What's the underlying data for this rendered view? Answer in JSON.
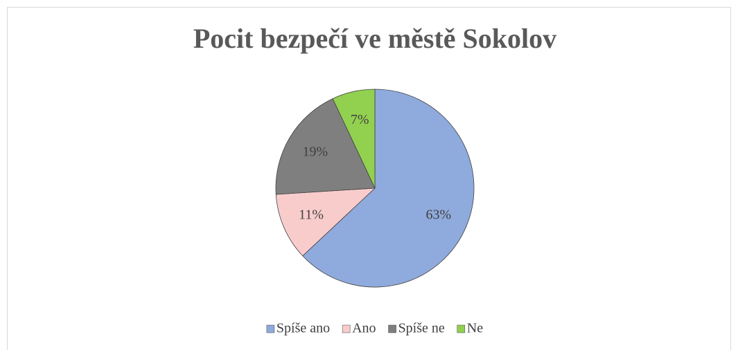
{
  "chart_data": {
    "type": "pie",
    "title": "Pocit bezpečí ve městě Sokolov",
    "categories": [
      "Spíše ano",
      "Ano",
      "Spíše ne",
      "Ne"
    ],
    "values": [
      63,
      11,
      19,
      7
    ],
    "value_labels": [
      "63%",
      "11%",
      "19%",
      "7%"
    ],
    "colors": [
      "#8faadc",
      "#f9cccc",
      "#7f7f7f",
      "#92d050"
    ],
    "legend": "bottom"
  }
}
